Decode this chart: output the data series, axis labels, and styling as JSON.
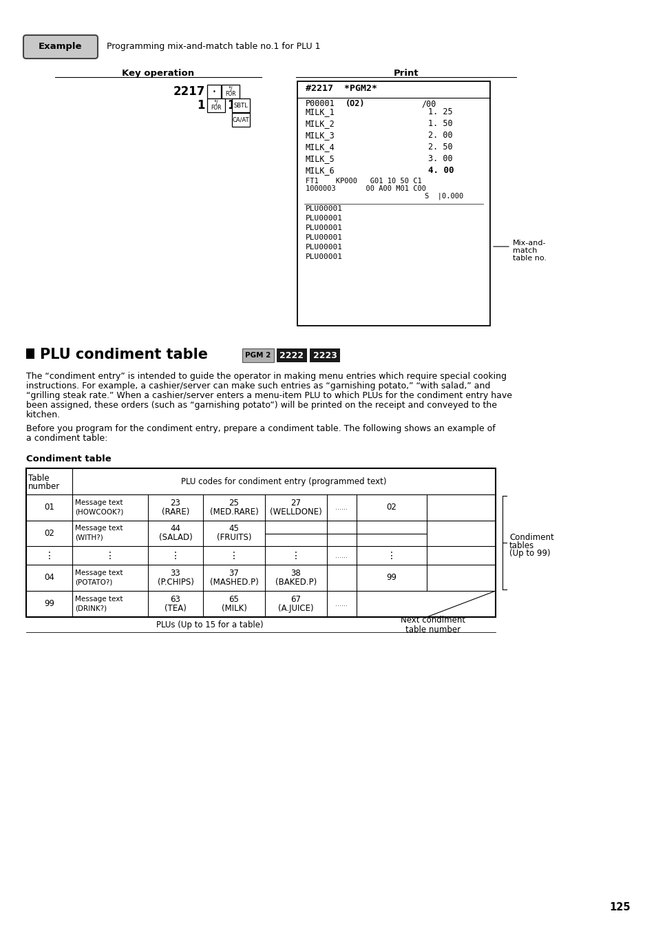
{
  "bg_color": "#ffffff",
  "example_label": "Example",
  "example_text": "Programming mix-and-match table no.1 for PLU 1",
  "key_op_title": "Key operation",
  "print_title": "Print",
  "section_title": "PLU condiment table",
  "pgm2_label": "PGM 2",
  "key2222": "2222",
  "key2223": "2223",
  "condiment_table_label": "Condiment table",
  "page_number": "125",
  "para1_lines": [
    "The “condiment entry” is intended to guide the operator in making menu entries which require special cooking",
    "instructions. For example, a cashier/server can make such entries as “garnishing potato,” “with salad,” and",
    "“grilling steak rate.” When a cashier/server enters a menu-item PLU to which PLUs for the condiment entry have",
    "been assigned, these orders (such as “garnishing potato”) will be printed on the receipt and conveyed to the",
    "kitchen."
  ],
  "para2_lines": [
    "Before you program for the condiment entry, prepare a condiment table. The following shows an example of",
    "a condiment table:"
  ]
}
